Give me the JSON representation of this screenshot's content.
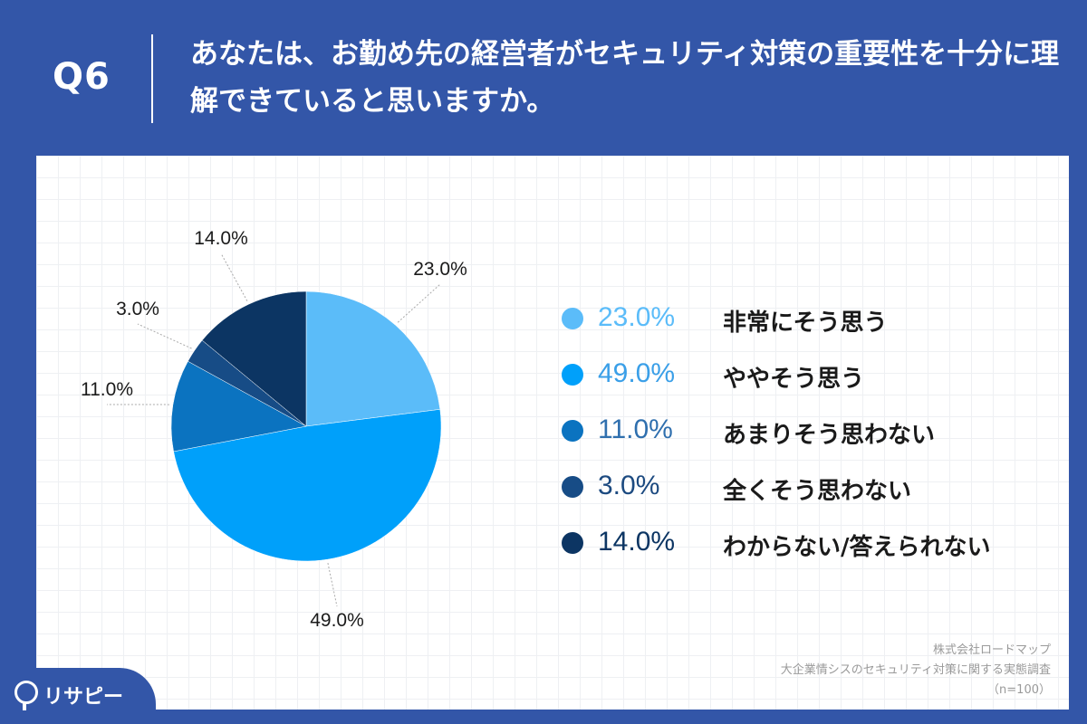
{
  "header": {
    "question_number": "Q6",
    "question_text": "あなたは、お勤め先の経営者がセキュリティ対策の重要性を十分に理解できていると思いますか。"
  },
  "chart_data": {
    "type": "pie",
    "title": "",
    "slices": [
      {
        "label": "非常にそう思う",
        "value": 23.0,
        "display": "23.0%",
        "color": "#5bbcf9"
      },
      {
        "label": "ややそう思う",
        "value": 49.0,
        "display": "49.0%",
        "color": "#00a0fa"
      },
      {
        "label": "あまりそう思わない",
        "value": 11.0,
        "display": "11.0%",
        "color": "#0b73c0"
      },
      {
        "label": "全くそう思わない",
        "value": 3.0,
        "display": "3.0%",
        "color": "#174c86"
      },
      {
        "label": "わからない/答えられない",
        "value": 14.0,
        "display": "14.0%",
        "color": "#0c3563"
      }
    ],
    "legend_position": "right"
  },
  "legend_text_colors": [
    "#5bbcf9",
    "#3a9fe8",
    "#2f6fae",
    "#1c4a80",
    "#0c3563"
  ],
  "footer": {
    "company": "株式会社ロードマップ",
    "survey": "大企業情シスのセキュリティ対策に関する実態調査",
    "sample": "（n=100）"
  },
  "brand": {
    "name": "リサピー"
  }
}
